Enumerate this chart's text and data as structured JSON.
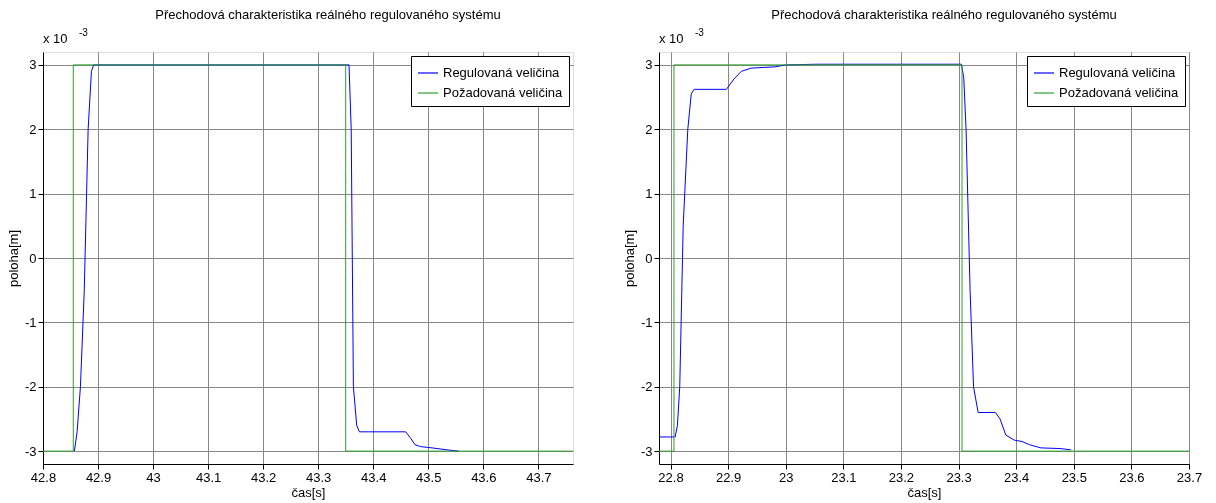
{
  "chart_data": [
    {
      "type": "line",
      "title": "Přechodová charakteristika reálného regulovaného systému",
      "xlabel": "čas[s]",
      "ylabel": "poloha[m]",
      "annotations": [
        "x 10$^{-3}$"
      ],
      "xlim": [
        42.8,
        43.763
      ],
      "xticks": [
        42.8,
        42.9,
        43,
        43.1,
        43.2,
        43.3,
        43.4,
        43.5,
        43.6,
        43.7
      ],
      "ylim": [
        -3.2,
        3.2
      ],
      "yticks": [
        -3,
        -2,
        -1,
        0,
        1,
        2,
        3
      ],
      "grid": true,
      "legend": "top right",
      "marker": "none",
      "line_style": "solid",
      "series": [
        {
          "name": "Regulovaná veličina",
          "color": "#0000ff",
          "x": [
            42.857,
            42.862,
            42.868,
            42.875,
            42.882,
            42.888,
            42.892,
            43.356,
            43.36,
            43.364,
            43.37,
            43.375,
            43.459,
            43.468,
            43.476,
            43.486,
            43.507,
            43.534,
            43.555
          ],
          "values": [
            -3,
            -2.7,
            -2,
            -0.5,
            2,
            2.9,
            3,
            3,
            2,
            -2,
            -2.6,
            -2.7,
            -2.7,
            -2.8,
            -2.9,
            -2.93,
            -2.95,
            -2.98,
            -3
          ]
        },
        {
          "name": "Požadovaná veličina",
          "color": "#2ca02c",
          "x": [
            42.8,
            42.855,
            42.855,
            43.35,
            43.35,
            43.763
          ],
          "values": [
            -3,
            -3,
            3,
            3,
            -3,
            -3
          ]
        }
      ]
    },
    {
      "type": "line",
      "title": "Přechodová charakteristika reálného regulovaného systému",
      "xlabel": "čas[s]",
      "ylabel": "poloha[m]",
      "annotations": [
        "x 10$^{-3}$"
      ],
      "xlim": [
        22.78,
        23.7
      ],
      "xticks": [
        22.8,
        22.9,
        23,
        23.1,
        23.2,
        23.3,
        23.4,
        23.5,
        23.6,
        23.7
      ],
      "ylim": [
        -3.2,
        3.2
      ],
      "yticks": [
        -3,
        -2,
        -1,
        0,
        1,
        2,
        3
      ],
      "grid": true,
      "legend": "top right",
      "marker": "none",
      "line_style": "solid",
      "series": [
        {
          "name": "Regulovaná veličina",
          "color": "#0000ff",
          "x": [
            22.78,
            22.808,
            22.812,
            22.816,
            22.822,
            22.83,
            22.836,
            22.841,
            22.897,
            22.91,
            22.923,
            22.94,
            22.982,
            23.0,
            23.055,
            23.305,
            23.309,
            23.313,
            23.32,
            23.326,
            23.334,
            23.364,
            23.372,
            23.382,
            23.397,
            23.41,
            23.423,
            23.443,
            23.476,
            23.495
          ],
          "values": [
            -2.78,
            -2.78,
            -2.6,
            -2,
            0.5,
            2,
            2.55,
            2.62,
            2.62,
            2.78,
            2.9,
            2.95,
            2.97,
            3.0,
            3.01,
            3.01,
            2.8,
            2,
            -0.5,
            -2,
            -2.4,
            -2.4,
            -2.5,
            -2.75,
            -2.83,
            -2.85,
            -2.9,
            -2.95,
            -2.96,
            -2.98
          ]
        },
        {
          "name": "Požadovaná veličina",
          "color": "#2ca02c",
          "x": [
            22.78,
            22.806,
            22.806,
            23.306,
            23.306,
            23.7
          ],
          "values": [
            -3,
            -3,
            3,
            3,
            -3,
            -3
          ]
        }
      ]
    }
  ]
}
